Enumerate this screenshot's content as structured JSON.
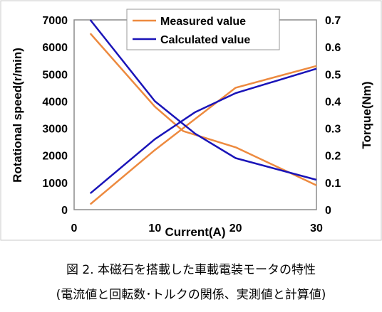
{
  "chart_data": {
    "type": "line",
    "title": "",
    "xlabel": "Current(A)",
    "ylabel_left": "Rotational speed(r/min)",
    "ylabel_right": "Torque(Nm)",
    "xlim": [
      0,
      30
    ],
    "xticks": [
      0,
      10,
      20,
      30
    ],
    "ylim_left": [
      0,
      7000
    ],
    "yticks_left": [
      0,
      1000,
      2000,
      3000,
      4000,
      5000,
      6000,
      7000
    ],
    "ylim_right": [
      0,
      0.7
    ],
    "yticks_right": [
      "0",
      "0.1",
      "0.2",
      "0.3",
      "0.4",
      "0.5",
      "0.6",
      "0.7"
    ],
    "grid": false,
    "legend_position": "top-center",
    "legend": [
      {
        "label": "Measured value",
        "color": "#ED8A3F"
      },
      {
        "label": "Calculated value",
        "color": "#1A14B8"
      }
    ],
    "series": [
      {
        "name": "Measured value",
        "quantity": "speed",
        "axis": "left",
        "color": "#ED8A3F",
        "x": [
          2,
          10,
          13.5,
          20,
          30
        ],
        "y": [
          6500,
          3800,
          2900,
          2300,
          900
        ]
      },
      {
        "name": "Measured value",
        "quantity": "torque",
        "axis": "right",
        "color": "#ED8A3F",
        "x": [
          2,
          10,
          20,
          30
        ],
        "y": [
          0.02,
          0.22,
          0.45,
          0.53
        ]
      },
      {
        "name": "Calculated value",
        "quantity": "speed",
        "axis": "left",
        "color": "#1A14B8",
        "x": [
          2,
          10,
          15,
          20,
          30
        ],
        "y": [
          7000,
          4000,
          2800,
          1900,
          1100
        ]
      },
      {
        "name": "Calculated value",
        "quantity": "torque",
        "axis": "right",
        "color": "#1A14B8",
        "x": [
          2,
          10,
          15,
          20,
          30
        ],
        "y": [
          0.06,
          0.26,
          0.36,
          0.43,
          0.52
        ]
      }
    ]
  },
  "caption": {
    "line1": "図 2.  本磁石を搭載した車載電装モータの特性",
    "line2": "(電流値と回転数･トルクの関係、実測値と計算値)"
  }
}
